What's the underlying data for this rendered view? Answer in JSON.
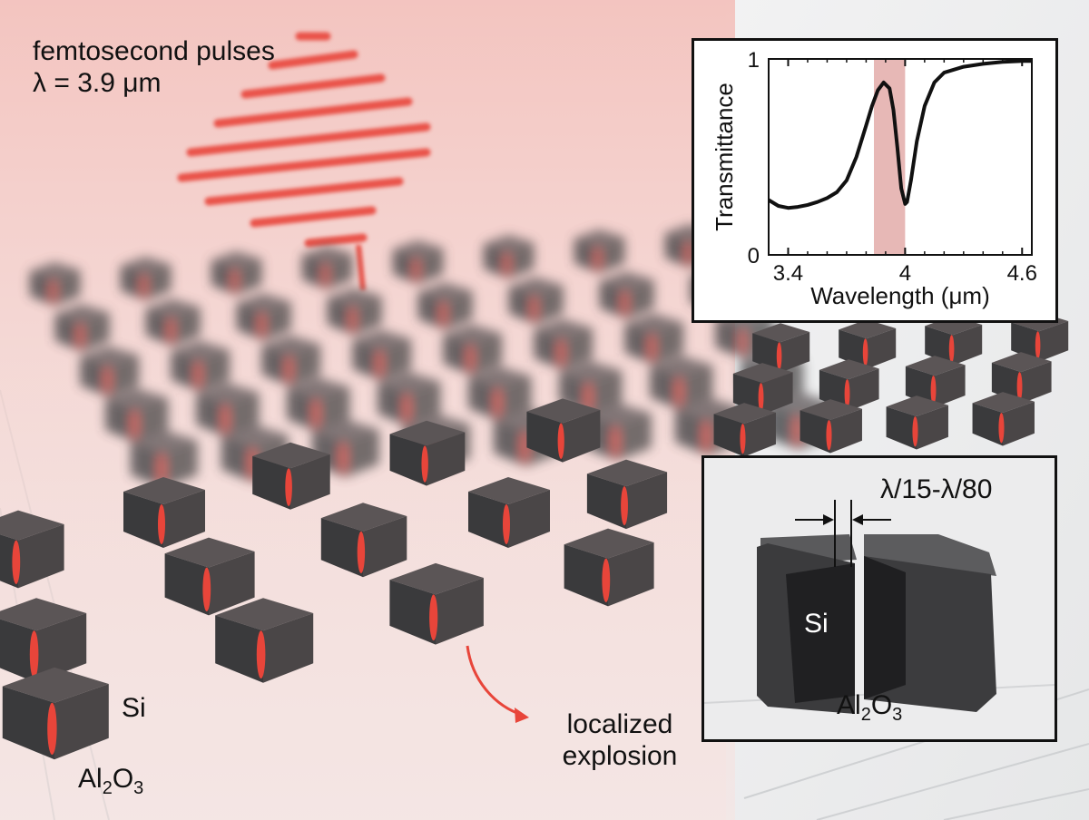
{
  "headline": {
    "line1": "femtosecond pulses",
    "line2": "λ = 3.9 μm"
  },
  "main_labels": {
    "si": "Si",
    "substrate_base": "Al",
    "substrate_sub1": "2",
    "substrate_mid": "O",
    "substrate_sub2": "3",
    "explosion_line1": "localized",
    "explosion_line2": "explosion"
  },
  "inset_detail": {
    "gap_label": "λ/15-λ/80",
    "si_label": "Si",
    "substrate_base": "Al",
    "substrate_sub1": "2",
    "substrate_mid": "O",
    "substrate_sub2": "3"
  },
  "colors": {
    "beam": "#e8453a",
    "block": "#3a3a3c",
    "resonance_band": "#e7b8b6"
  },
  "chart_data": {
    "type": "line",
    "title": "",
    "xlabel": "Wavelength (μm)",
    "ylabel": "Transmittance",
    "xlim": [
      3.3,
      4.65
    ],
    "ylim": [
      0,
      1
    ],
    "x_ticks": [
      "3.4",
      "4",
      "4.6"
    ],
    "x_tick_values": [
      3.4,
      4.0,
      4.6
    ],
    "y_ticks": [
      "0",
      "1"
    ],
    "y_tick_values": [
      0,
      1
    ],
    "highlight_band": [
      3.84,
      4.0
    ],
    "series": [
      {
        "name": "Transmittance",
        "x": [
          3.3,
          3.35,
          3.4,
          3.45,
          3.5,
          3.55,
          3.6,
          3.65,
          3.7,
          3.75,
          3.8,
          3.83,
          3.86,
          3.89,
          3.92,
          3.94,
          3.96,
          3.98,
          4.0,
          4.01,
          4.03,
          4.06,
          4.1,
          4.15,
          4.2,
          4.3,
          4.4,
          4.5,
          4.6,
          4.65
        ],
        "y": [
          0.28,
          0.25,
          0.24,
          0.245,
          0.255,
          0.27,
          0.29,
          0.32,
          0.38,
          0.5,
          0.66,
          0.76,
          0.84,
          0.88,
          0.85,
          0.74,
          0.55,
          0.34,
          0.26,
          0.27,
          0.38,
          0.58,
          0.76,
          0.88,
          0.93,
          0.96,
          0.975,
          0.985,
          0.99,
          0.99
        ]
      }
    ]
  }
}
